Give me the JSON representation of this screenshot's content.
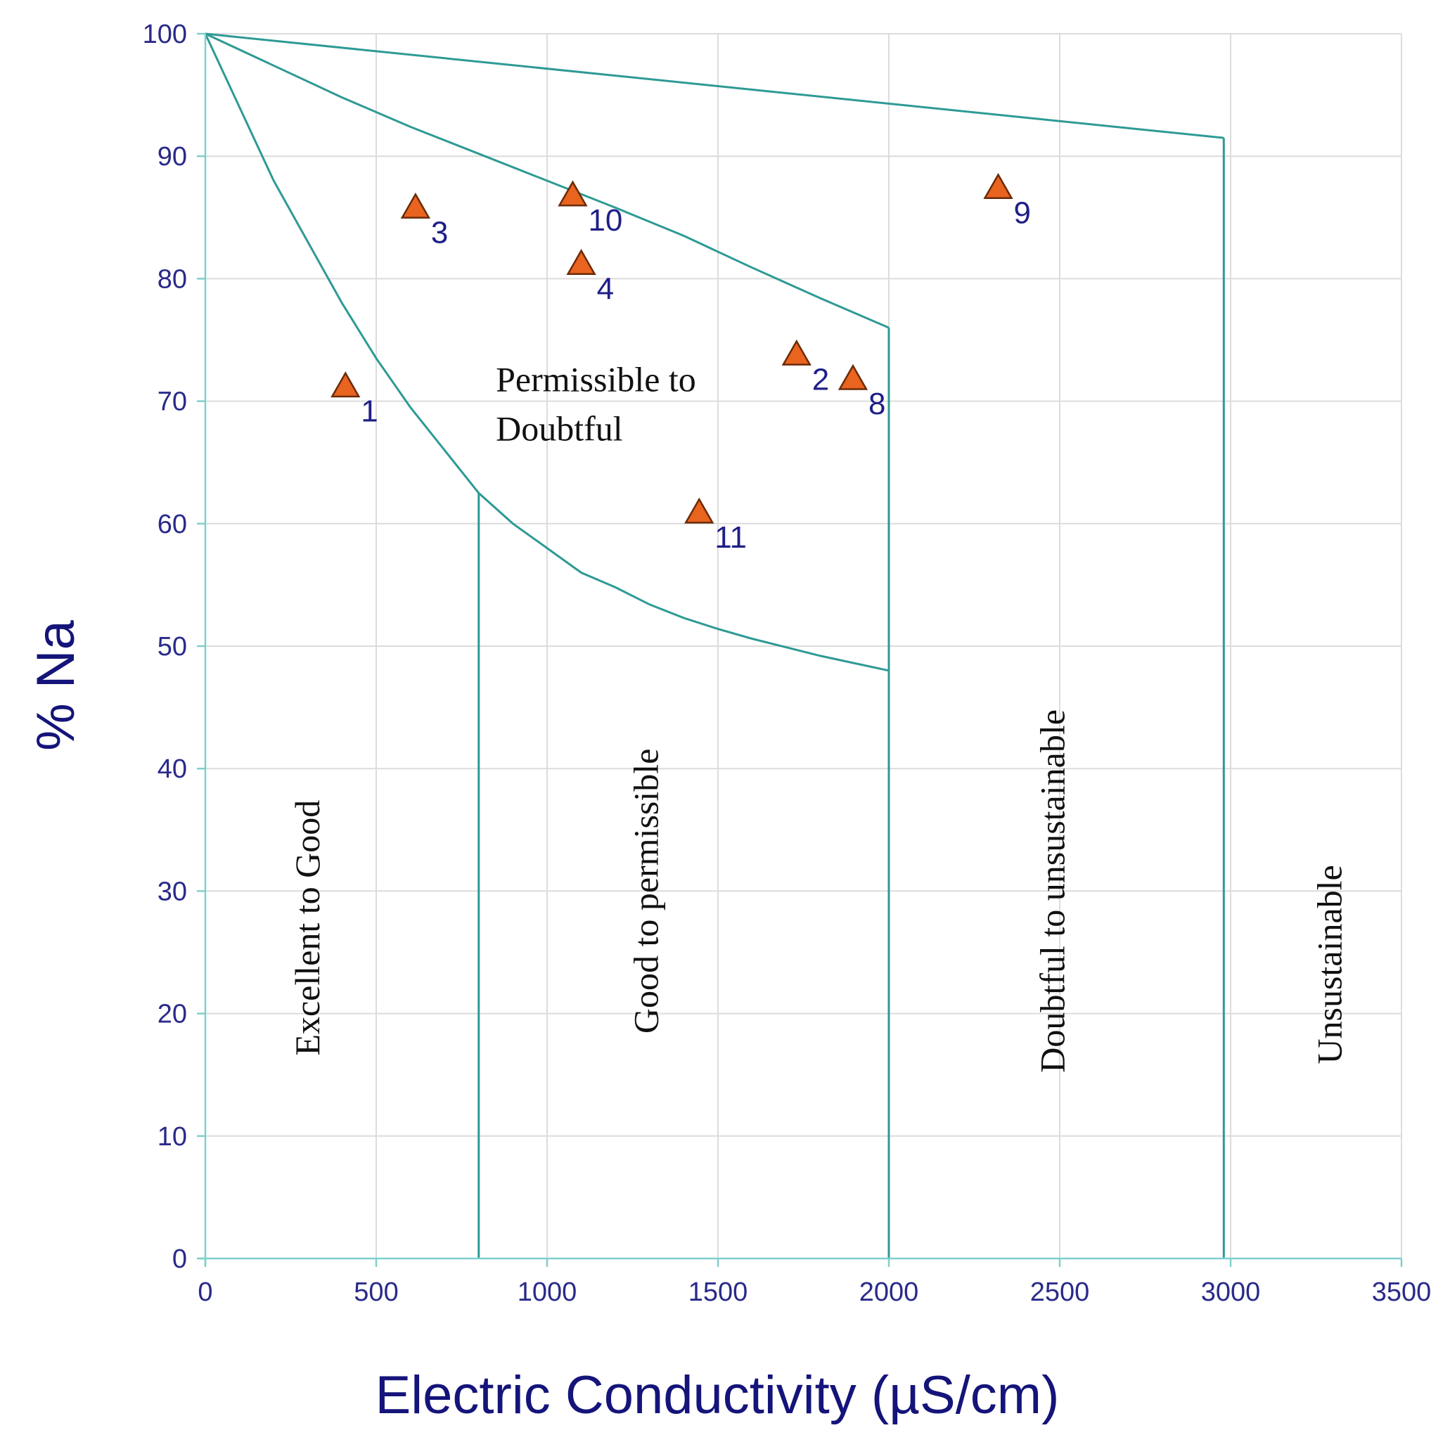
{
  "chart_data": {
    "type": "scatter",
    "title": "",
    "xlabel": "Electric Conductivity (µS/cm)",
    "ylabel": "% Na",
    "xlim": [
      0,
      3500
    ],
    "ylim": [
      0,
      100
    ],
    "xticks": [
      0,
      500,
      1000,
      1500,
      2000,
      2500,
      3000,
      3500
    ],
    "yticks": [
      0,
      10,
      20,
      30,
      40,
      50,
      60,
      70,
      80,
      90,
      100
    ],
    "grid": true,
    "points": [
      {
        "label": "1",
        "x": 410,
        "y": 71.2
      },
      {
        "label": "3",
        "x": 615,
        "y": 85.8
      },
      {
        "label": "10",
        "x": 1075,
        "y": 86.8
      },
      {
        "label": "4",
        "x": 1100,
        "y": 81.2
      },
      {
        "label": "2",
        "x": 1730,
        "y": 73.8
      },
      {
        "label": "8",
        "x": 1895,
        "y": 71.8
      },
      {
        "label": "11",
        "x": 1445,
        "y": 60.9
      },
      {
        "label": "9",
        "x": 2320,
        "y": 87.4
      }
    ],
    "boundaries": [
      {
        "name": "excellent-good upper curve",
        "points": [
          [
            0,
            100
          ],
          [
            100,
            94
          ],
          [
            200,
            88
          ],
          [
            300,
            83
          ],
          [
            400,
            78
          ],
          [
            500,
            73.5
          ],
          [
            600,
            69.5
          ],
          [
            700,
            66
          ],
          [
            800,
            62.5
          ],
          [
            900,
            60
          ],
          [
            1000,
            58
          ],
          [
            1100,
            56
          ],
          [
            1200,
            54.8
          ],
          [
            1300,
            53.4
          ],
          [
            1400,
            52.3
          ],
          [
            1500,
            51.4
          ],
          [
            1600,
            50.6
          ],
          [
            1700,
            49.9
          ],
          [
            1800,
            49.2
          ],
          [
            1900,
            48.6
          ],
          [
            2000,
            48
          ]
        ]
      },
      {
        "name": "permissible-doubtful upper curve",
        "points": [
          [
            0,
            100
          ],
          [
            200,
            97.4
          ],
          [
            400,
            94.8
          ],
          [
            600,
            92.4
          ],
          [
            800,
            90.2
          ],
          [
            1000,
            88.0
          ],
          [
            1200,
            85.8
          ],
          [
            1400,
            83.5
          ],
          [
            1600,
            80.9
          ],
          [
            1800,
            78.4
          ],
          [
            2000,
            76
          ]
        ]
      },
      {
        "name": "unsustainable upper line",
        "points": [
          [
            0,
            100
          ],
          [
            2980,
            91.5
          ]
        ]
      },
      {
        "name": "vertical 800",
        "points": [
          [
            800,
            0
          ],
          [
            800,
            62.5
          ]
        ]
      },
      {
        "name": "vertical 2000",
        "points": [
          [
            2000,
            0
          ],
          [
            2000,
            76
          ]
        ]
      },
      {
        "name": "vertical 2980",
        "points": [
          [
            2980,
            0
          ],
          [
            2980,
            91.5
          ]
        ]
      }
    ],
    "zones": [
      {
        "label": "Excellent to Good",
        "x": 310,
        "y": 27,
        "orientation": "vertical"
      },
      {
        "label": "Good to permissible",
        "x": 1300,
        "y": 30,
        "orientation": "vertical"
      },
      {
        "label": "Doubtful to unsustainable",
        "x": 2490,
        "y": 30,
        "orientation": "vertical"
      },
      {
        "label": "Unsustainable",
        "x": 3300,
        "y": 24,
        "orientation": "vertical"
      },
      {
        "label": "Permissible to",
        "x": 850,
        "y": 70.8,
        "orientation": "horizontal"
      },
      {
        "label": "Doubtful",
        "x": 850,
        "y": 66.8,
        "orientation": "horizontal"
      }
    ],
    "colors": {
      "marker": "#e8641f",
      "boundary": "#2e9a94",
      "tick_text": "#2a2a8a",
      "axis_title": "#14147a"
    }
  }
}
